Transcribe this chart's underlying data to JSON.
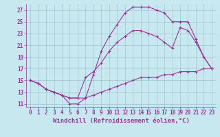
{
  "xlabel": "Windchill (Refroidissement éolien,°C)",
  "background_color": "#c8e8f0",
  "line_color": "#993399",
  "grid_color": "#99bbcc",
  "xlim": [
    -0.5,
    23.5
  ],
  "ylim": [
    10.5,
    28.0
  ],
  "xticks": [
    0,
    1,
    2,
    3,
    4,
    5,
    6,
    7,
    8,
    9,
    10,
    11,
    12,
    13,
    14,
    15,
    16,
    17,
    18,
    19,
    20,
    21,
    22,
    23
  ],
  "yticks": [
    11,
    13,
    15,
    17,
    19,
    21,
    23,
    25,
    27
  ],
  "curve1_x": [
    0,
    1,
    2,
    3,
    4,
    5,
    6,
    7,
    8,
    9,
    10,
    11,
    12,
    13,
    14,
    15,
    16,
    17,
    18,
    19,
    20,
    21,
    22,
    23
  ],
  "curve1_y": [
    15.0,
    14.5,
    13.5,
    13.0,
    12.5,
    11.0,
    11.0,
    12.0,
    16.0,
    20.0,
    22.5,
    24.5,
    26.5,
    27.5,
    27.5,
    27.5,
    27.0,
    26.5,
    25.0,
    25.0,
    25.0,
    22.0,
    19.0,
    17.0
  ],
  "curve2_x": [
    0,
    1,
    2,
    3,
    4,
    5,
    6,
    7,
    8,
    9,
    10,
    11,
    12,
    13,
    14,
    15,
    16,
    17,
    18,
    19,
    20,
    21,
    22,
    23
  ],
  "curve2_y": [
    15.0,
    14.5,
    13.5,
    13.0,
    12.5,
    12.0,
    12.0,
    15.5,
    16.5,
    18.0,
    20.0,
    21.5,
    22.5,
    23.5,
    23.5,
    23.0,
    22.5,
    21.5,
    20.5,
    24.0,
    23.5,
    21.5,
    19.0,
    17.0
  ],
  "curve3_x": [
    0,
    1,
    2,
    3,
    4,
    5,
    6,
    7,
    8,
    9,
    10,
    11,
    12,
    13,
    14,
    15,
    16,
    17,
    18,
    19,
    20,
    21,
    22,
    23
  ],
  "curve3_y": [
    15.0,
    14.5,
    13.5,
    13.0,
    12.5,
    12.0,
    12.0,
    12.0,
    12.5,
    13.0,
    13.5,
    14.0,
    14.5,
    15.0,
    15.5,
    15.5,
    15.5,
    16.0,
    16.0,
    16.5,
    16.5,
    16.5,
    17.0,
    17.0
  ],
  "marker": "+",
  "markersize": 3,
  "linewidth": 0.8,
  "tick_label_fontsize": 5.5,
  "xlabel_fontsize": 6.5
}
